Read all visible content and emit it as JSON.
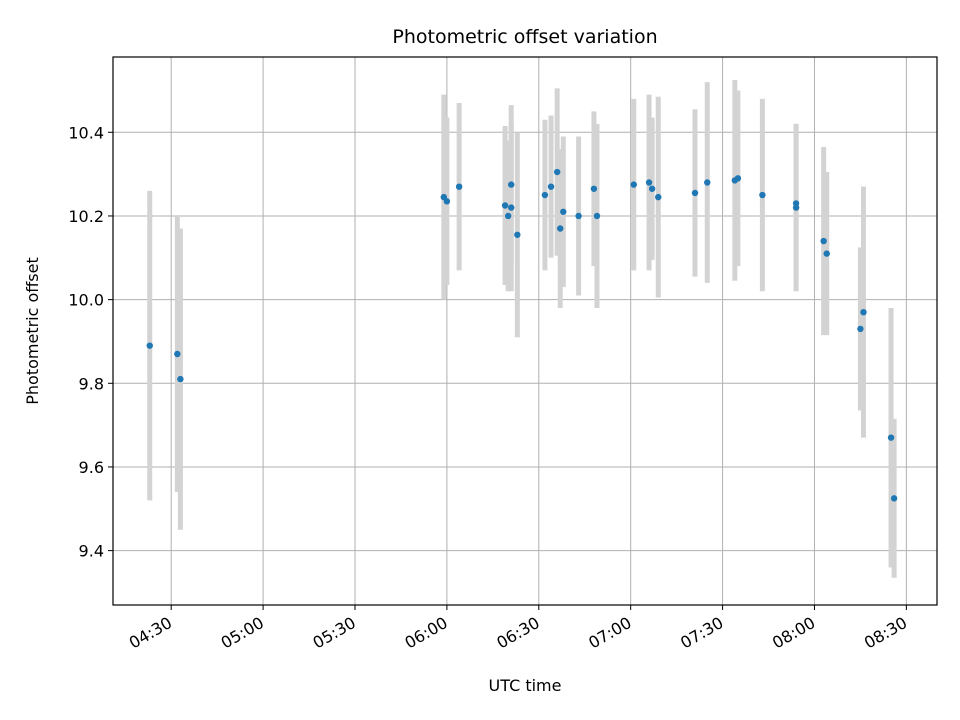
{
  "chart_data": {
    "type": "scatter",
    "title": "Photometric offset variation",
    "xlabel": "UTC time",
    "ylabel": "Photometric offset",
    "x_ticks": [
      "04:30",
      "05:00",
      "05:30",
      "06:00",
      "06:30",
      "07:00",
      "07:30",
      "08:00",
      "08:30"
    ],
    "x_tick_minutes": [
      270,
      300,
      330,
      360,
      390,
      420,
      450,
      480,
      510
    ],
    "xlim": [
      "04:11",
      "08:40"
    ],
    "ylim": [
      9.27,
      10.58
    ],
    "y_ticks": [
      "9.4",
      "9.6",
      "9.8",
      "10.0",
      "10.2",
      "10.4"
    ],
    "grid": true,
    "colors": {
      "point": "#1f77b4",
      "errorbar": "#d3d3d3",
      "grid": "#b0b0b0"
    },
    "points": [
      {
        "x": "04:23",
        "y": 9.89,
        "yerr": 0.37
      },
      {
        "x": "04:32",
        "y": 9.87,
        "yerr": 0.33
      },
      {
        "x": "04:33",
        "y": 9.81,
        "yerr": 0.36
      },
      {
        "x": "05:59",
        "y": 10.245,
        "yerr": 0.245
      },
      {
        "x": "06:00",
        "y": 10.235,
        "yerr": 0.2
      },
      {
        "x": "06:04",
        "y": 10.27,
        "yerr": 0.2
      },
      {
        "x": "06:19",
        "y": 10.225,
        "yerr": 0.19
      },
      {
        "x": "06:20",
        "y": 10.2,
        "yerr": 0.18
      },
      {
        "x": "06:21",
        "y": 10.22,
        "yerr": 0.2
      },
      {
        "x": "06:21",
        "y": 10.275,
        "yerr": 0.19
      },
      {
        "x": "06:23",
        "y": 10.155,
        "yerr": 0.245
      },
      {
        "x": "06:32",
        "y": 10.25,
        "yerr": 0.18
      },
      {
        "x": "06:34",
        "y": 10.27,
        "yerr": 0.17
      },
      {
        "x": "06:36",
        "y": 10.305,
        "yerr": 0.2
      },
      {
        "x": "06:37",
        "y": 10.17,
        "yerr": 0.19
      },
      {
        "x": "06:38",
        "y": 10.21,
        "yerr": 0.18
      },
      {
        "x": "06:43",
        "y": 10.2,
        "yerr": 0.19
      },
      {
        "x": "06:48",
        "y": 10.265,
        "yerr": 0.185
      },
      {
        "x": "06:49",
        "y": 10.2,
        "yerr": 0.22
      },
      {
        "x": "07:01",
        "y": 10.275,
        "yerr": 0.205
      },
      {
        "x": "07:06",
        "y": 10.28,
        "yerr": 0.21
      },
      {
        "x": "07:07",
        "y": 10.265,
        "yerr": 0.17
      },
      {
        "x": "07:09",
        "y": 10.245,
        "yerr": 0.24
      },
      {
        "x": "07:21",
        "y": 10.255,
        "yerr": 0.2
      },
      {
        "x": "07:25",
        "y": 10.28,
        "yerr": 0.24
      },
      {
        "x": "07:34",
        "y": 10.285,
        "yerr": 0.24
      },
      {
        "x": "07:35",
        "y": 10.29,
        "yerr": 0.21
      },
      {
        "x": "07:43",
        "y": 10.25,
        "yerr": 0.23
      },
      {
        "x": "07:54",
        "y": 10.22,
        "yerr": 0.2
      },
      {
        "x": "07:54",
        "y": 10.23,
        "yerr": 0.19
      },
      {
        "x": "08:03",
        "y": 10.14,
        "yerr": 0.225
      },
      {
        "x": "08:04",
        "y": 10.11,
        "yerr": 0.195
      },
      {
        "x": "08:15",
        "y": 9.93,
        "yerr": 0.195
      },
      {
        "x": "08:16",
        "y": 9.97,
        "yerr": 0.3
      },
      {
        "x": "08:25",
        "y": 9.67,
        "yerr": 0.31
      },
      {
        "x": "08:26",
        "y": 9.525,
        "yerr": 0.19
      }
    ]
  }
}
